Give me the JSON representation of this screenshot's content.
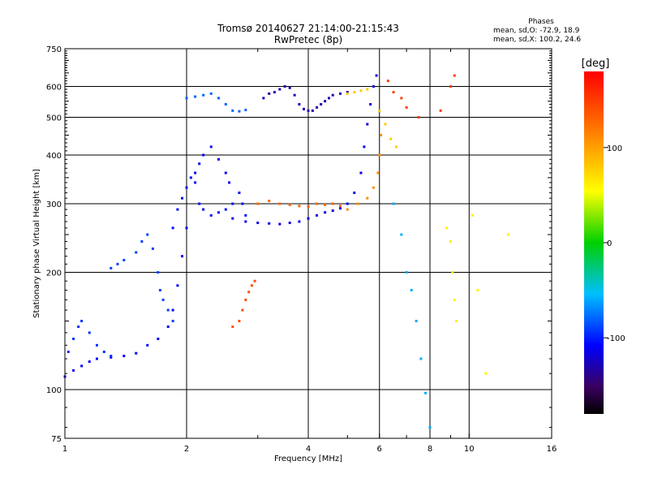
{
  "header": {
    "title_line1": "Tromsø 20140627 21:14:00-21:15:43",
    "title_line2": "RwPretec (8p)"
  },
  "phase_info": {
    "heading": "Phases",
    "line_o": "mean, sd,O: -72.9, 18.9",
    "line_x": "mean, sd,X: 100.2, 24.6"
  },
  "colorbar": {
    "unit_label": "[deg]",
    "tick_labels": [
      "100",
      "0",
      "-100"
    ],
    "range": [
      -180,
      180
    ]
  },
  "chart_data": {
    "type": "scatter",
    "title": "Tromsø 20140627 21:14:00-21:15:43",
    "subtitle": "RwPretec (8p)",
    "xlabel": "Frequency [MHz]",
    "ylabel": "Stationary phase Virtual Height [km]",
    "xscale": "log",
    "yscale": "log",
    "xlim": [
      1,
      16
    ],
    "ylim": [
      75,
      750
    ],
    "x_ticks": [
      1,
      2,
      4,
      6,
      8,
      10,
      16
    ],
    "x_tick_labels": [
      "1",
      "2",
      "4",
      "6",
      "8",
      "10",
      "16"
    ],
    "x_minor_ticks": [
      3,
      5,
      7,
      9
    ],
    "y_ticks": [
      75,
      100,
      200,
      300,
      400,
      500,
      600,
      750
    ],
    "y_tick_labels": [
      "75",
      "100",
      "200",
      "300",
      "400",
      "500",
      "600",
      "750"
    ],
    "grid": true,
    "color_encoding": "phase in degrees, rainbow scale from -180 (black/purple) to 180 (red)",
    "traces": [
      {
        "name": "",
        "phase": -110,
        "points": [
          [
            1.0,
            108
          ],
          [
            1.05,
            112
          ],
          [
            1.1,
            115
          ],
          [
            1.15,
            118
          ],
          [
            1.2,
            120
          ],
          [
            1.3,
            121
          ],
          [
            1.4,
            122
          ],
          [
            1.5,
            124
          ],
          [
            1.6,
            130
          ],
          [
            1.7,
            135
          ],
          [
            1.8,
            145
          ],
          [
            1.85,
            160
          ],
          [
            1.9,
            185
          ],
          [
            1.95,
            220
          ],
          [
            2.0,
            260
          ]
        ]
      },
      {
        "name": "",
        "phase": -95,
        "points": [
          [
            1.02,
            125
          ],
          [
            1.05,
            135
          ],
          [
            1.08,
            145
          ],
          [
            1.1,
            150
          ],
          [
            1.15,
            140
          ],
          [
            1.2,
            130
          ],
          [
            1.25,
            125
          ],
          [
            1.3,
            122
          ]
        ]
      },
      {
        "name": "",
        "phase": -90,
        "points": [
          [
            1.3,
            205
          ],
          [
            1.35,
            210
          ],
          [
            1.4,
            215
          ],
          [
            1.5,
            225
          ],
          [
            1.55,
            240
          ],
          [
            1.6,
            250
          ],
          [
            1.65,
            230
          ],
          [
            1.7,
            200
          ],
          [
            1.72,
            180
          ],
          [
            1.75,
            170
          ],
          [
            1.8,
            160
          ],
          [
            1.85,
            150
          ]
        ]
      },
      {
        "name": "",
        "phase": -105,
        "points": [
          [
            1.85,
            260
          ],
          [
            1.9,
            290
          ],
          [
            1.95,
            310
          ],
          [
            2.0,
            330
          ],
          [
            2.05,
            350
          ],
          [
            2.1,
            340
          ],
          [
            2.15,
            300
          ],
          [
            2.2,
            290
          ],
          [
            2.3,
            280
          ],
          [
            2.4,
            285
          ],
          [
            2.5,
            290
          ],
          [
            2.6,
            300
          ],
          [
            2.7,
            320
          ],
          [
            2.75,
            300
          ],
          [
            2.8,
            280
          ]
        ]
      },
      {
        "name": "",
        "phase": -110,
        "points": [
          [
            2.1,
            360
          ],
          [
            2.15,
            380
          ],
          [
            2.2,
            400
          ],
          [
            2.3,
            420
          ],
          [
            2.4,
            390
          ],
          [
            2.5,
            360
          ],
          [
            2.55,
            340
          ]
        ]
      },
      {
        "name": "",
        "phase": -115,
        "points": [
          [
            2.6,
            275
          ],
          [
            2.8,
            270
          ],
          [
            3.0,
            268
          ],
          [
            3.2,
            267
          ],
          [
            3.4,
            266
          ],
          [
            3.6,
            268
          ],
          [
            3.8,
            270
          ],
          [
            4.0,
            275
          ],
          [
            4.2,
            280
          ],
          [
            4.4,
            285
          ],
          [
            4.6,
            288
          ],
          [
            4.8,
            292
          ],
          [
            5.0,
            300
          ],
          [
            5.2,
            320
          ],
          [
            5.4,
            360
          ],
          [
            5.5,
            420
          ],
          [
            5.6,
            480
          ],
          [
            5.7,
            540
          ],
          [
            5.8,
            600
          ],
          [
            5.9,
            640
          ]
        ]
      },
      {
        "name": "",
        "phase": 140,
        "points": [
          [
            2.6,
            145
          ],
          [
            2.7,
            150
          ],
          [
            2.75,
            160
          ],
          [
            2.8,
            170
          ],
          [
            2.85,
            178
          ],
          [
            2.9,
            185
          ],
          [
            2.95,
            190
          ]
        ]
      },
      {
        "name": "",
        "phase": 130,
        "points": [
          [
            3.0,
            300
          ],
          [
            3.2,
            305
          ],
          [
            3.4,
            300
          ],
          [
            3.6,
            298
          ],
          [
            3.8,
            296
          ],
          [
            4.0,
            295
          ],
          [
            4.2,
            300
          ],
          [
            4.4,
            298
          ],
          [
            4.6,
            300
          ],
          [
            4.8,
            296
          ]
        ]
      },
      {
        "name": "",
        "phase": 110,
        "points": [
          [
            5.0,
            290
          ],
          [
            5.3,
            300
          ],
          [
            5.6,
            310
          ],
          [
            5.8,
            330
          ],
          [
            5.95,
            360
          ],
          [
            6.0,
            400
          ],
          [
            6.05,
            450
          ]
        ]
      },
      {
        "name": "",
        "phase": -130,
        "points": [
          [
            3.1,
            560
          ],
          [
            3.2,
            575
          ],
          [
            3.3,
            580
          ],
          [
            3.4,
            590
          ],
          [
            3.5,
            600
          ],
          [
            3.6,
            595
          ],
          [
            3.7,
            570
          ],
          [
            3.8,
            540
          ],
          [
            3.9,
            525
          ],
          [
            4.0,
            520
          ],
          [
            4.1,
            520
          ],
          [
            4.2,
            530
          ],
          [
            4.3,
            540
          ],
          [
            4.4,
            550
          ],
          [
            4.5,
            560
          ],
          [
            4.6,
            570
          ],
          [
            4.8,
            575
          ],
          [
            5.0,
            580
          ]
        ]
      },
      {
        "name": "",
        "phase": -80,
        "points": [
          [
            2.0,
            560
          ],
          [
            2.1,
            565
          ],
          [
            2.2,
            570
          ],
          [
            2.3,
            575
          ],
          [
            2.4,
            560
          ],
          [
            2.5,
            540
          ],
          [
            2.6,
            520
          ],
          [
            2.7,
            518
          ],
          [
            2.8,
            522
          ]
        ]
      },
      {
        "name": "",
        "phase": 80,
        "points": [
          [
            5.0,
            575
          ],
          [
            5.2,
            580
          ],
          [
            5.4,
            585
          ],
          [
            5.6,
            590
          ],
          [
            6.0,
            520
          ],
          [
            6.2,
            480
          ],
          [
            6.4,
            440
          ],
          [
            6.6,
            420
          ]
        ]
      },
      {
        "name": "",
        "phase": 150,
        "points": [
          [
            6.3,
            620
          ],
          [
            6.5,
            580
          ],
          [
            6.8,
            560
          ],
          [
            7.0,
            530
          ],
          [
            7.5,
            500
          ],
          [
            8.5,
            520
          ],
          [
            9.0,
            600
          ],
          [
            9.2,
            640
          ]
        ]
      },
      {
        "name": "",
        "phase": -60,
        "points": [
          [
            6.5,
            300
          ],
          [
            6.8,
            250
          ],
          [
            7.0,
            200
          ],
          [
            7.2,
            180
          ],
          [
            7.4,
            150
          ],
          [
            7.6,
            120
          ],
          [
            7.8,
            98
          ],
          [
            8.0,
            80
          ]
        ]
      },
      {
        "name": "",
        "phase": 60,
        "points": [
          [
            8.8,
            260
          ],
          [
            9.0,
            240
          ],
          [
            9.1,
            200
          ],
          [
            9.2,
            170
          ],
          [
            9.3,
            150
          ],
          [
            10.2,
            280
          ],
          [
            10.5,
            180
          ],
          [
            11.0,
            110
          ],
          [
            12.5,
            250
          ]
        ]
      }
    ]
  }
}
